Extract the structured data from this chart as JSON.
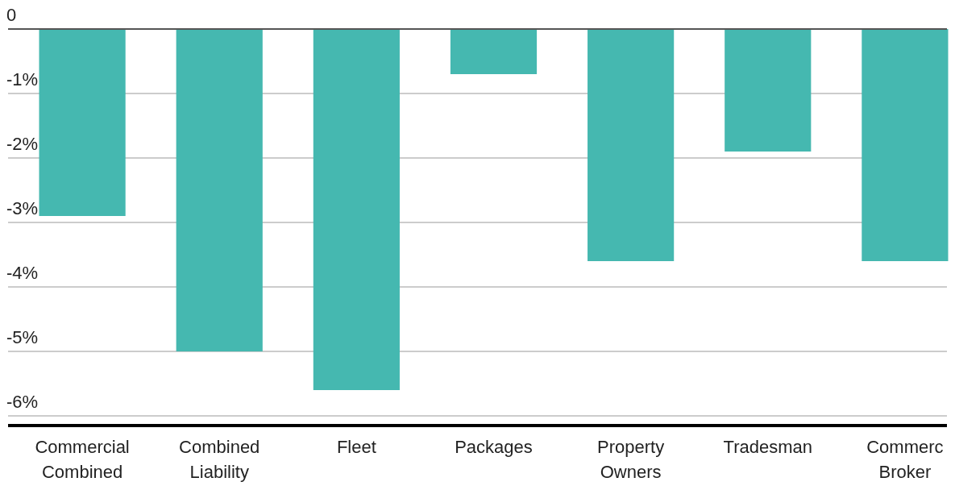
{
  "chart_data": {
    "type": "bar",
    "categories": [
      "Commercial Combined",
      "Combined Liability",
      "Fleet",
      "Packages",
      "Property Owners",
      "Tradesman",
      "Commerc Broker"
    ],
    "values": [
      -2.9,
      -5.0,
      -5.6,
      -0.7,
      -3.6,
      -1.9,
      -3.6
    ],
    "color": "#45b8b0",
    "ylim": [
      -6.15,
      0
    ],
    "yticks": [
      {
        "value": -6,
        "label": "-6%"
      },
      {
        "value": -5,
        "label": "-5%"
      },
      {
        "value": -4,
        "label": "-4%"
      },
      {
        "value": -3,
        "label": "-3%"
      },
      {
        "value": -2,
        "label": "-2%"
      },
      {
        "value": -1,
        "label": "-1%"
      },
      0
    ],
    "grid": "y"
  }
}
